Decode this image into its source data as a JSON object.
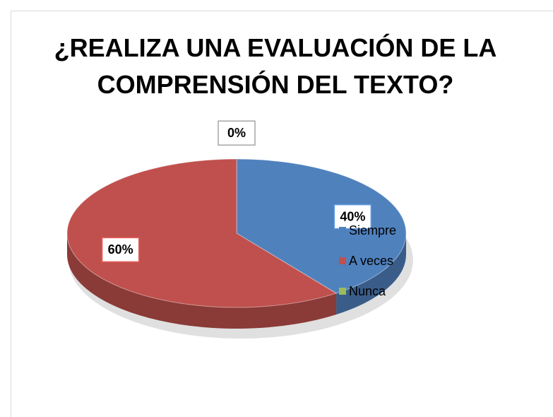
{
  "chart_data": {
    "type": "pie",
    "title": "¿REALIZA UNA EVALUACIÓN DE LA COMPRENSIÓN DEL TEXTO?",
    "categories": [
      "Siempre",
      "A veces",
      "Nunca"
    ],
    "values": [
      40,
      60,
      0
    ],
    "value_labels": [
      "40%",
      "60%",
      "0%"
    ],
    "colors": [
      "#4f81bd",
      "#c0504d",
      "#9bbb59"
    ],
    "legend": "right",
    "three_d": true
  }
}
